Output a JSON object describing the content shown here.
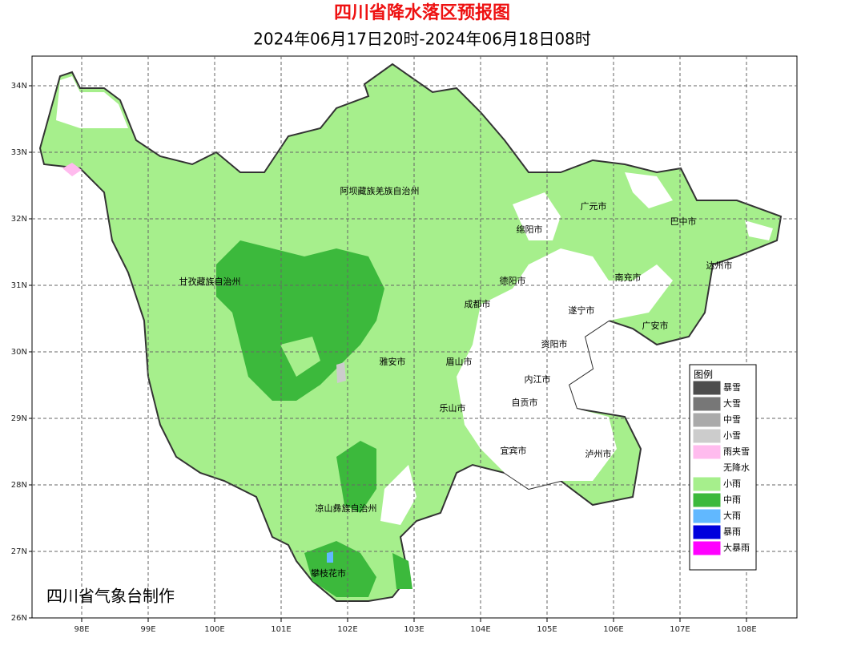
{
  "header": {
    "title": "四川省降水落区预报图",
    "subtitle": "2024年06月17日20时-2024年06月18日08时"
  },
  "map": {
    "lon_ticks": [
      {
        "value": 98,
        "label": "98E"
      },
      {
        "value": 99,
        "label": "99E"
      },
      {
        "value": 100,
        "label": "100E"
      },
      {
        "value": 101,
        "label": "101E"
      },
      {
        "value": 102,
        "label": "102E"
      },
      {
        "value": 103,
        "label": "103E"
      },
      {
        "value": 104,
        "label": "104E"
      },
      {
        "value": 105,
        "label": "105E"
      },
      {
        "value": 106,
        "label": "106E"
      },
      {
        "value": 107,
        "label": "107E"
      },
      {
        "value": 108,
        "label": "108E"
      }
    ],
    "lat_ticks": [
      {
        "value": 26,
        "label": "26N"
      },
      {
        "value": 27,
        "label": "27N"
      },
      {
        "value": 28,
        "label": "28N"
      },
      {
        "value": 29,
        "label": "29N"
      },
      {
        "value": 30,
        "label": "30N"
      },
      {
        "value": 31,
        "label": "31N"
      },
      {
        "value": 32,
        "label": "32N"
      },
      {
        "value": 33,
        "label": "33N"
      },
      {
        "value": 34,
        "label": "34N"
      }
    ],
    "cities": [
      "阿坝藏族羌族自治州",
      "甘孜藏族自治州",
      "广元市",
      "巴中市",
      "绵阳市",
      "达州市",
      "德阳市",
      "南充市",
      "成都市",
      "遂宁市",
      "广安市",
      "资阳市",
      "雅安市",
      "眉山市",
      "内江市",
      "自贡市",
      "乐山市",
      "宜宾市",
      "泸州市",
      "凉山彝族自治州",
      "攀枝花市"
    ],
    "credit": "四川省气象台制作"
  },
  "legend": {
    "title": "图例",
    "items": [
      {
        "label": "暴雪",
        "color": "#4d4d4d"
      },
      {
        "label": "大雪",
        "color": "#777777"
      },
      {
        "label": "中雪",
        "color": "#aaaaaa"
      },
      {
        "label": "小雪",
        "color": "#cccccc"
      },
      {
        "label": "雨夹雪",
        "color": "#ffbbee"
      },
      {
        "label": "无降水",
        "color": "#ffffff"
      },
      {
        "label": "小雨",
        "color": "#a6ef8c"
      },
      {
        "label": "中雨",
        "color": "#3cb93c"
      },
      {
        "label": "大雨",
        "color": "#61b8ff"
      },
      {
        "label": "暴雨",
        "color": "#0000dd"
      },
      {
        "label": "大暴雨",
        "color": "#ff00ff"
      }
    ]
  }
}
